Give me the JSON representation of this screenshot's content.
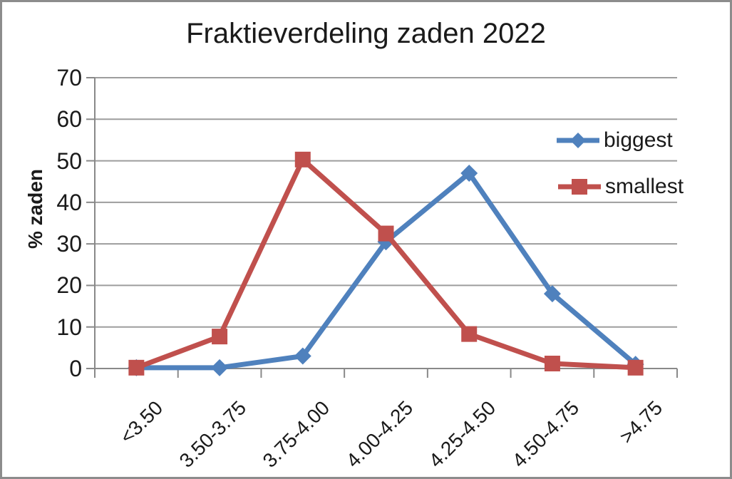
{
  "window": {
    "frame_border_color": "#8c8c8c",
    "background_color": "#ffffff"
  },
  "chart_data": {
    "type": "line",
    "title": "Fraktieverdeling zaden 2022",
    "xlabel": "",
    "ylabel": "% zaden",
    "ylim": [
      0,
      70
    ],
    "yticks": [
      0,
      10,
      20,
      30,
      40,
      50,
      60,
      70
    ],
    "grid": "horizontal",
    "legend_position": "inside-right",
    "categories": [
      "<3.50",
      "3.50-3.75",
      "3.75-4.00",
      "4.00-4.25",
      "4.25-4.50",
      "4.50-4.75",
      ">4.75"
    ],
    "series": [
      {
        "name": "biggest",
        "marker": "diamond",
        "color": "#4f81bd",
        "values": [
          0.2,
          0.2,
          3,
          30.5,
          47,
          18,
          1
        ]
      },
      {
        "name": "smallest",
        "marker": "square",
        "color": "#c0504d",
        "values": [
          0.2,
          7.7,
          50.3,
          32.5,
          8.3,
          1.2,
          0.2
        ]
      }
    ],
    "colors": {
      "gridline": "#9d9d9d",
      "axis": "#898989",
      "text": "#1a1a1a"
    }
  }
}
